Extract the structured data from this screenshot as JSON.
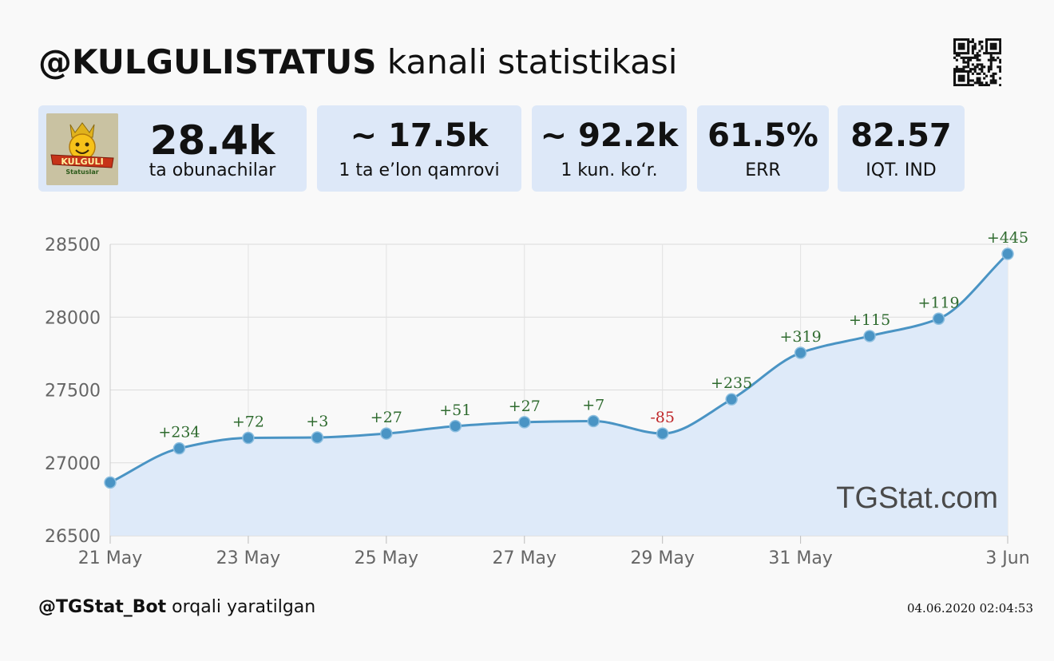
{
  "header": {
    "channel": "@KULGULISTATUS",
    "suffix": "kanali statistikasi"
  },
  "avatar": {
    "logo_text": "KULGULI",
    "logo_sub": "Statuslar"
  },
  "stats": {
    "subscribers": {
      "value": "28.4k",
      "label": "ta obunachilar"
    },
    "reach": {
      "value": "~ 17.5k",
      "label": "1 ta e’lon qamrovi"
    },
    "daily_views": {
      "value": "~ 92.2k",
      "label": "1 kun. ko‘r."
    },
    "err": {
      "value": "61.5%",
      "label": "ERR"
    },
    "index": {
      "value": "82.57",
      "label": "IQT. IND"
    }
  },
  "watermark": "TGStat.com",
  "footer": {
    "bot": "@TGStat_Bot",
    "suffix": " orqali yaratilgan",
    "timestamp": "04.06.2020 02:04:53"
  },
  "colors": {
    "line": "#4a94c4",
    "area": "#deeaf9",
    "positive": "#2f6b2f",
    "negative": "#c0282a",
    "card": "#dde8f8"
  },
  "chart_data": {
    "type": "area",
    "x": [
      "2020-05-21",
      "2020-05-22",
      "2020-05-23",
      "2020-05-24",
      "2020-05-25",
      "2020-05-26",
      "2020-05-27",
      "2020-05-28",
      "2020-05-29",
      "2020-05-30",
      "2020-05-31",
      "2020-06-01",
      "2020-06-02",
      "2020-06-03"
    ],
    "values": [
      26865,
      27099,
      27171,
      27174,
      27201,
      27252,
      27279,
      27286,
      27201,
      27436,
      27755,
      27870,
      27989,
      28434
    ],
    "point_labels": [
      "",
      "+234",
      "+72",
      "+3",
      "+27",
      "+51",
      "+27",
      "+7",
      "-85",
      "+235",
      "+319",
      "+115",
      "+119",
      "+445"
    ],
    "x_ticks": [
      {
        "x": "2020-05-21",
        "label": "21 May"
      },
      {
        "x": "2020-05-23",
        "label": "23 May"
      },
      {
        "x": "2020-05-25",
        "label": "25 May"
      },
      {
        "x": "2020-05-27",
        "label": "27 May"
      },
      {
        "x": "2020-05-29",
        "label": "29 May"
      },
      {
        "x": "2020-05-31",
        "label": "31 May"
      },
      {
        "x": "2020-06-03",
        "label": "3 Jun"
      }
    ],
    "y_ticks": [
      26500,
      27000,
      27500,
      28000,
      28500
    ],
    "ylim": [
      26500,
      28500
    ],
    "grid": true,
    "title": "",
    "xlabel": "",
    "ylabel": ""
  }
}
